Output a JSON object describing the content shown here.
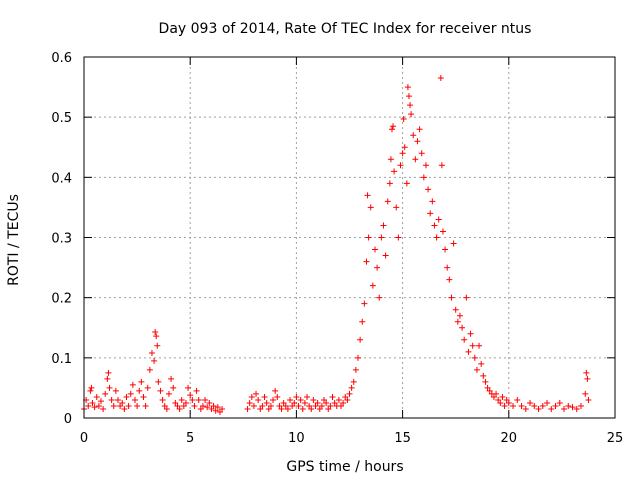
{
  "chart_data": {
    "type": "scatter",
    "title": "Day 093 of 2014, Rate Of TEC Index for receiver ntus",
    "xlabel": "GPS time / hours",
    "ylabel": "ROTI / TECUs",
    "xlim": [
      0,
      25
    ],
    "ylim": [
      0,
      0.6
    ],
    "x_ticks": [
      0,
      5,
      10,
      15,
      20,
      25
    ],
    "y_ticks": [
      0,
      0.1,
      0.2,
      0.3,
      0.4,
      0.5,
      0.6
    ],
    "x_tick_labels": [
      "0",
      "5",
      "10",
      "15",
      "20",
      "25"
    ],
    "y_tick_labels": [
      "0",
      "0.1",
      "0.2",
      "0.3",
      "0.4",
      "0.5",
      "0.6"
    ],
    "grid": true,
    "marker": "+",
    "series": [
      {
        "name": "ROTI",
        "color": "#ff0000",
        "points": [
          [
            0.0,
            0.015
          ],
          [
            0.1,
            0.03
          ],
          [
            0.2,
            0.02
          ],
          [
            0.3,
            0.045
          ],
          [
            0.35,
            0.05
          ],
          [
            0.4,
            0.025
          ],
          [
            0.5,
            0.018
          ],
          [
            0.6,
            0.035
          ],
          [
            0.7,
            0.02
          ],
          [
            0.8,
            0.028
          ],
          [
            0.9,
            0.015
          ],
          [
            1.0,
            0.04
          ],
          [
            1.1,
            0.065
          ],
          [
            1.15,
            0.075
          ],
          [
            1.2,
            0.05
          ],
          [
            1.3,
            0.03
          ],
          [
            1.4,
            0.02
          ],
          [
            1.5,
            0.045
          ],
          [
            1.6,
            0.03
          ],
          [
            1.7,
            0.02
          ],
          [
            1.8,
            0.025
          ],
          [
            1.9,
            0.015
          ],
          [
            2.0,
            0.035
          ],
          [
            2.1,
            0.02
          ],
          [
            2.2,
            0.04
          ],
          [
            2.3,
            0.055
          ],
          [
            2.4,
            0.03
          ],
          [
            2.5,
            0.02
          ],
          [
            2.6,
            0.045
          ],
          [
            2.7,
            0.06
          ],
          [
            2.8,
            0.035
          ],
          [
            2.9,
            0.02
          ],
          [
            3.0,
            0.05
          ],
          [
            3.1,
            0.08
          ],
          [
            3.2,
            0.108
          ],
          [
            3.3,
            0.095
          ],
          [
            3.35,
            0.143
          ],
          [
            3.4,
            0.136
          ],
          [
            3.45,
            0.12
          ],
          [
            3.5,
            0.06
          ],
          [
            3.6,
            0.045
          ],
          [
            3.7,
            0.03
          ],
          [
            3.8,
            0.02
          ],
          [
            3.9,
            0.015
          ],
          [
            4.0,
            0.04
          ],
          [
            4.1,
            0.065
          ],
          [
            4.2,
            0.05
          ],
          [
            4.3,
            0.025
          ],
          [
            4.4,
            0.02
          ],
          [
            4.5,
            0.015
          ],
          [
            4.6,
            0.03
          ],
          [
            4.7,
            0.02
          ],
          [
            4.8,
            0.025
          ],
          [
            4.9,
            0.05
          ],
          [
            5.0,
            0.038
          ],
          [
            5.1,
            0.03
          ],
          [
            5.2,
            0.02
          ],
          [
            5.3,
            0.045
          ],
          [
            5.4,
            0.03
          ],
          [
            5.5,
            0.015
          ],
          [
            5.6,
            0.02
          ],
          [
            5.7,
            0.03
          ],
          [
            5.8,
            0.018
          ],
          [
            5.9,
            0.025
          ],
          [
            6.0,
            0.015
          ],
          [
            6.1,
            0.02
          ],
          [
            6.2,
            0.012
          ],
          [
            6.3,
            0.018
          ],
          [
            6.4,
            0.01
          ],
          [
            6.5,
            0.015
          ],
          [
            7.7,
            0.015
          ],
          [
            7.8,
            0.025
          ],
          [
            7.9,
            0.035
          ],
          [
            8.0,
            0.02
          ],
          [
            8.1,
            0.04
          ],
          [
            8.2,
            0.03
          ],
          [
            8.3,
            0.015
          ],
          [
            8.4,
            0.02
          ],
          [
            8.5,
            0.035
          ],
          [
            8.6,
            0.025
          ],
          [
            8.7,
            0.015
          ],
          [
            8.8,
            0.02
          ],
          [
            8.9,
            0.03
          ],
          [
            9.0,
            0.045
          ],
          [
            9.1,
            0.035
          ],
          [
            9.2,
            0.02
          ],
          [
            9.3,
            0.015
          ],
          [
            9.4,
            0.025
          ],
          [
            9.5,
            0.02
          ],
          [
            9.6,
            0.015
          ],
          [
            9.7,
            0.03
          ],
          [
            9.8,
            0.02
          ],
          [
            9.9,
            0.025
          ],
          [
            10.0,
            0.035
          ],
          [
            10.1,
            0.02
          ],
          [
            10.2,
            0.03
          ],
          [
            10.3,
            0.015
          ],
          [
            10.4,
            0.025
          ],
          [
            10.5,
            0.035
          ],
          [
            10.6,
            0.02
          ],
          [
            10.7,
            0.015
          ],
          [
            10.8,
            0.03
          ],
          [
            10.9,
            0.02
          ],
          [
            11.0,
            0.025
          ],
          [
            11.1,
            0.015
          ],
          [
            11.2,
            0.02
          ],
          [
            11.3,
            0.03
          ],
          [
            11.4,
            0.025
          ],
          [
            11.5,
            0.015
          ],
          [
            11.6,
            0.02
          ],
          [
            11.7,
            0.035
          ],
          [
            11.8,
            0.025
          ],
          [
            11.9,
            0.02
          ],
          [
            12.0,
            0.03
          ],
          [
            12.1,
            0.02
          ],
          [
            12.2,
            0.025
          ],
          [
            12.3,
            0.035
          ],
          [
            12.4,
            0.03
          ],
          [
            12.5,
            0.04
          ],
          [
            12.6,
            0.05
          ],
          [
            12.7,
            0.06
          ],
          [
            12.8,
            0.08
          ],
          [
            12.9,
            0.1
          ],
          [
            13.0,
            0.13
          ],
          [
            13.1,
            0.16
          ],
          [
            13.2,
            0.19
          ],
          [
            13.3,
            0.26
          ],
          [
            13.35,
            0.37
          ],
          [
            13.4,
            0.3
          ],
          [
            13.5,
            0.35
          ],
          [
            13.6,
            0.22
          ],
          [
            13.7,
            0.28
          ],
          [
            13.8,
            0.25
          ],
          [
            13.9,
            0.2
          ],
          [
            14.0,
            0.3
          ],
          [
            14.1,
            0.32
          ],
          [
            14.2,
            0.27
          ],
          [
            14.3,
            0.36
          ],
          [
            14.4,
            0.39
          ],
          [
            14.45,
            0.43
          ],
          [
            14.5,
            0.48
          ],
          [
            14.55,
            0.485
          ],
          [
            14.6,
            0.41
          ],
          [
            14.7,
            0.35
          ],
          [
            14.8,
            0.3
          ],
          [
            14.9,
            0.42
          ],
          [
            15.0,
            0.44
          ],
          [
            15.05,
            0.497
          ],
          [
            15.1,
            0.45
          ],
          [
            15.2,
            0.39
          ],
          [
            15.25,
            0.55
          ],
          [
            15.3,
            0.535
          ],
          [
            15.35,
            0.52
          ],
          [
            15.4,
            0.505
          ],
          [
            15.5,
            0.47
          ],
          [
            15.6,
            0.43
          ],
          [
            15.7,
            0.46
          ],
          [
            15.8,
            0.48
          ],
          [
            15.9,
            0.44
          ],
          [
            16.0,
            0.4
          ],
          [
            16.1,
            0.42
          ],
          [
            16.2,
            0.38
          ],
          [
            16.3,
            0.34
          ],
          [
            16.4,
            0.36
          ],
          [
            16.5,
            0.32
          ],
          [
            16.6,
            0.3
          ],
          [
            16.7,
            0.33
          ],
          [
            16.8,
            0.565
          ],
          [
            16.85,
            0.42
          ],
          [
            16.9,
            0.31
          ],
          [
            17.0,
            0.28
          ],
          [
            17.1,
            0.25
          ],
          [
            17.2,
            0.23
          ],
          [
            17.3,
            0.2
          ],
          [
            17.4,
            0.29
          ],
          [
            17.5,
            0.18
          ],
          [
            17.6,
            0.16
          ],
          [
            17.7,
            0.17
          ],
          [
            17.8,
            0.15
          ],
          [
            17.9,
            0.13
          ],
          [
            18.0,
            0.2
          ],
          [
            18.1,
            0.11
          ],
          [
            18.2,
            0.14
          ],
          [
            18.3,
            0.12
          ],
          [
            18.4,
            0.1
          ],
          [
            18.5,
            0.08
          ],
          [
            18.6,
            0.12
          ],
          [
            18.7,
            0.09
          ],
          [
            18.8,
            0.07
          ],
          [
            18.9,
            0.06
          ],
          [
            19.0,
            0.05
          ],
          [
            19.1,
            0.045
          ],
          [
            19.2,
            0.04
          ],
          [
            19.3,
            0.035
          ],
          [
            19.4,
            0.04
          ],
          [
            19.5,
            0.03
          ],
          [
            19.6,
            0.025
          ],
          [
            19.7,
            0.035
          ],
          [
            19.8,
            0.02
          ],
          [
            19.9,
            0.03
          ],
          [
            20.0,
            0.025
          ],
          [
            20.2,
            0.02
          ],
          [
            20.4,
            0.03
          ],
          [
            20.6,
            0.02
          ],
          [
            20.8,
            0.015
          ],
          [
            21.0,
            0.025
          ],
          [
            21.2,
            0.02
          ],
          [
            21.4,
            0.015
          ],
          [
            21.6,
            0.02
          ],
          [
            21.8,
            0.025
          ],
          [
            22.0,
            0.015
          ],
          [
            22.2,
            0.02
          ],
          [
            22.4,
            0.025
          ],
          [
            22.6,
            0.015
          ],
          [
            22.8,
            0.02
          ],
          [
            23.0,
            0.018
          ],
          [
            23.2,
            0.015
          ],
          [
            23.4,
            0.02
          ],
          [
            23.6,
            0.04
          ],
          [
            23.65,
            0.075
          ],
          [
            23.7,
            0.065
          ],
          [
            23.75,
            0.03
          ]
        ]
      }
    ]
  }
}
